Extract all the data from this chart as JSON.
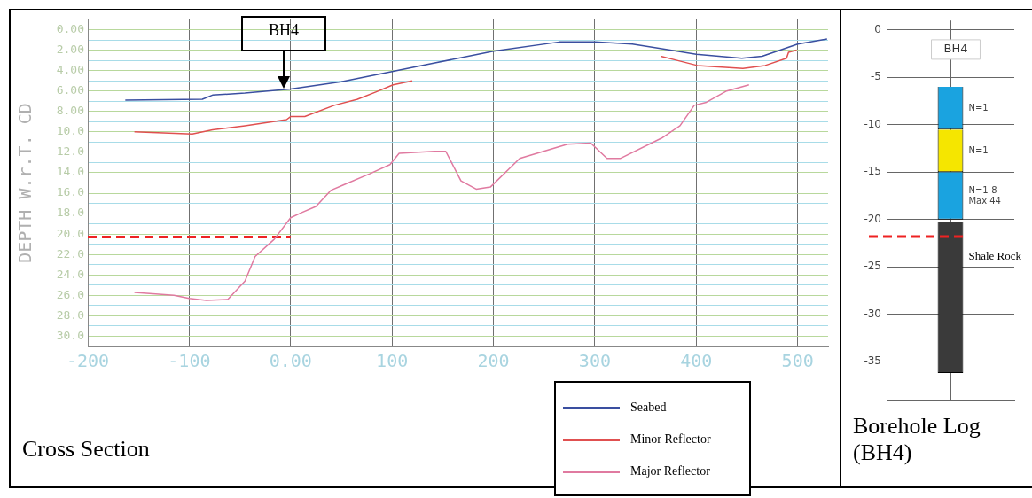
{
  "chart_data": [
    {
      "type": "line",
      "title": "Cross Section",
      "ylabel": "DEPTH W.r.T. CD",
      "xlim": [
        -200,
        530
      ],
      "ylim": [
        31,
        -1
      ],
      "xticks": [
        -200,
        -100,
        {
          "value": 0,
          "label": "0.00"
        },
        100,
        200,
        300,
        400,
        500
      ],
      "yticks": [
        {
          "value": 0,
          "label": "0.00"
        },
        {
          "value": 1,
          "label": null
        },
        {
          "value": 2,
          "label": "2.00"
        },
        {
          "value": 3,
          "label": null
        },
        {
          "value": 4,
          "label": "4.00"
        },
        {
          "value": 5,
          "label": null
        },
        {
          "value": 6,
          "label": "6.00"
        },
        {
          "value": 7,
          "label": null
        },
        {
          "value": 8,
          "label": "8.00"
        },
        {
          "value": 9,
          "label": null
        },
        {
          "value": 10,
          "label": "10.0"
        },
        {
          "value": 11,
          "label": null
        },
        {
          "value": 12,
          "label": "12.0"
        },
        {
          "value": 13,
          "label": null
        },
        {
          "value": 14,
          "label": "14.0"
        },
        {
          "value": 15,
          "label": null
        },
        {
          "value": 16,
          "label": "16.0"
        },
        {
          "value": 17,
          "label": null
        },
        {
          "value": 18,
          "label": "18.0"
        },
        {
          "value": 19,
          "label": null
        },
        {
          "value": 20,
          "label": "20.0"
        },
        {
          "value": 21,
          "label": null
        },
        {
          "value": 22,
          "label": "22.0"
        },
        {
          "value": 23,
          "label": null
        },
        {
          "value": 24,
          "label": "24.0"
        },
        {
          "value": 25,
          "label": null
        },
        {
          "value": 26,
          "label": "26.0"
        },
        {
          "value": 27,
          "label": null
        },
        {
          "value": 28,
          "label": "28.0"
        },
        {
          "value": 29,
          "label": null
        },
        {
          "value": 30,
          "label": "30.0"
        }
      ],
      "grid": true,
      "legend": "bottom right",
      "marker": "none",
      "line_style": "solid",
      "annotations": [
        "BH4"
      ],
      "series": [
        {
          "name": "Seabed",
          "color": "#3a4fa0",
          "x": [
            -163,
            -87,
            -77,
            -45,
            0,
            50,
            100,
            140,
            200,
            265,
            300,
            337,
            400,
            445,
            465,
            500,
            529
          ],
          "values": [
            6.9,
            6.8,
            6.4,
            6.2,
            5.8,
            5.1,
            4.1,
            3.3,
            2.1,
            1.2,
            1.2,
            1.4,
            2.4,
            2.8,
            2.6,
            1.4,
            0.9
          ]
        },
        {
          "name": "Minor Reflector",
          "color": "#e05050",
          "x": [
            -154,
            -97,
            -77,
            -45,
            -4,
            0,
            14,
            43,
            66,
            84,
            101,
            120,
            240,
            365,
            381,
            401,
            446,
            468,
            489,
            491,
            499
          ],
          "values": [
            10,
            10.2,
            9.8,
            9.4,
            8.8,
            8.5,
            8.5,
            7.4,
            6.8,
            6.1,
            5.4,
            5.0,
            null,
            2.6,
            3.0,
            3.5,
            3.8,
            3.5,
            2.8,
            2.2,
            2.0
          ]
        },
        {
          "name": "Major Reflector",
          "color": "#e07aa0",
          "x": [
            -154,
            -115,
            -100,
            -83,
            -62,
            -45,
            -35,
            -16,
            0,
            11,
            25,
            40,
            52,
            78,
            98,
            107,
            142,
            153,
            168,
            183,
            197,
            226,
            273,
            296,
            312,
            325,
            366,
            384,
            398,
            410,
            430,
            452
          ],
          "values": [
            25.7,
            26.0,
            26.3,
            26.5,
            26.4,
            24.6,
            22.2,
            20.5,
            18.4,
            17.9,
            17.3,
            15.7,
            15.2,
            14.1,
            13.2,
            12.1,
            11.9,
            11.9,
            14.8,
            15.6,
            15.4,
            12.6,
            11.2,
            11.1,
            12.6,
            12.6,
            10.6,
            9.4,
            7.4,
            7.1,
            6.0,
            5.4
          ]
        },
        {
          "type": "line",
          "line_style": "dashed",
          "color": "#ee2222",
          "x": [
            -200,
            0
          ],
          "values": [
            20.3,
            20.3
          ]
        }
      ]
    },
    {
      "type": "bar",
      "title": "Borehole Log (BH4)",
      "categories": [
        "BH4"
      ],
      "ylim": [
        -39,
        1
      ],
      "yticks": [
        0,
        -5,
        -10,
        -15,
        -20,
        -25,
        -30,
        -35
      ],
      "grid": true,
      "ref_lines": [
        {
          "axis": "y",
          "value": -21.8,
          "color": "#ee2222",
          "line_style": "dashed"
        }
      ],
      "annotations": [
        "N=1",
        "N=1",
        "N=1-8\nMax 44",
        "Shale Rock"
      ],
      "series": [
        {
          "color": "#1aa3e0",
          "base": [
            -6
          ],
          "values": [
            -4.5
          ]
        },
        {
          "color": "#f5e600",
          "base": [
            -10.5
          ],
          "values": [
            -4.5
          ]
        },
        {
          "color": "#1aa3e0",
          "base": [
            -15
          ],
          "values": [
            -5
          ]
        },
        {
          "color": "#3a3a3a",
          "base": [
            -20.2
          ],
          "values": [
            -16
          ]
        }
      ]
    }
  ]
}
